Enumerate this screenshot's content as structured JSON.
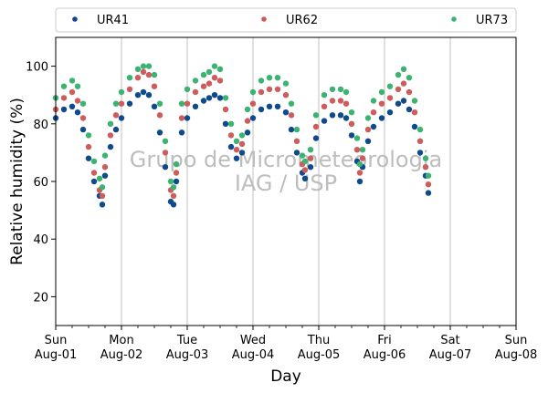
{
  "chart_data": {
    "type": "scatter",
    "xlabel": "Day",
    "ylabel": "Relative humidity (%)",
    "xlim": [
      "2022-08-01 00:00",
      "2022-08-08 00:00"
    ],
    "ylim": [
      10,
      110
    ],
    "yticks": [
      20,
      40,
      60,
      80,
      100
    ],
    "xtick_labels": [
      {
        "day": "Sun",
        "date": "Aug-01"
      },
      {
        "day": "Mon",
        "date": "Aug-02"
      },
      {
        "day": "Tue",
        "date": "Aug-03"
      },
      {
        "day": "Wed",
        "date": "Aug-04"
      },
      {
        "day": "Thu",
        "date": "Aug-05"
      },
      {
        "day": "Fri",
        "date": "Aug-06"
      },
      {
        "day": "Sat",
        "date": "Aug-07"
      },
      {
        "day": "Sun",
        "date": "Aug-08"
      }
    ],
    "grid": "vertical",
    "legend": "top",
    "watermark": [
      "Grupo de Micrometeorologia",
      "IAG / USP"
    ],
    "series": [
      {
        "name": "UR41",
        "color": "#0f4a8a",
        "points": [
          [
            "2022-08-01 00:00",
            82
          ],
          [
            "2022-08-01 03:00",
            85
          ],
          [
            "2022-08-01 06:00",
            86
          ],
          [
            "2022-08-01 08:00",
            84
          ],
          [
            "2022-08-01 10:00",
            78
          ],
          [
            "2022-08-01 12:00",
            68
          ],
          [
            "2022-08-01 14:00",
            60
          ],
          [
            "2022-08-01 16:00",
            55
          ],
          [
            "2022-08-01 17:00",
            52
          ],
          [
            "2022-08-01 18:00",
            62
          ],
          [
            "2022-08-01 20:00",
            72
          ],
          [
            "2022-08-01 22:00",
            78
          ],
          [
            "2022-08-02 00:00",
            82
          ],
          [
            "2022-08-02 03:00",
            87
          ],
          [
            "2022-08-02 06:00",
            90
          ],
          [
            "2022-08-02 08:00",
            91
          ],
          [
            "2022-08-02 10:00",
            90
          ],
          [
            "2022-08-02 12:00",
            86
          ],
          [
            "2022-08-02 14:00",
            77
          ],
          [
            "2022-08-02 16:00",
            65
          ],
          [
            "2022-08-02 18:00",
            53
          ],
          [
            "2022-08-02 19:00",
            52
          ],
          [
            "2022-08-02 20:00",
            60
          ],
          [
            "2022-08-02 22:00",
            77
          ],
          [
            "2022-08-03 00:00",
            82
          ],
          [
            "2022-08-03 03:00",
            86
          ],
          [
            "2022-08-03 06:00",
            88
          ],
          [
            "2022-08-03 08:00",
            89
          ],
          [
            "2022-08-03 10:00",
            90
          ],
          [
            "2022-08-03 12:00",
            89
          ],
          [
            "2022-08-03 14:00",
            80
          ],
          [
            "2022-08-03 16:00",
            72
          ],
          [
            "2022-08-03 18:00",
            68
          ],
          [
            "2022-08-03 20:00",
            70
          ],
          [
            "2022-08-03 22:00",
            77
          ],
          [
            "2022-08-04 00:00",
            82
          ],
          [
            "2022-08-04 03:00",
            85
          ],
          [
            "2022-08-04 06:00",
            86
          ],
          [
            "2022-08-04 09:00",
            86
          ],
          [
            "2022-08-04 12:00",
            84
          ],
          [
            "2022-08-04 14:00",
            78
          ],
          [
            "2022-08-04 16:00",
            70
          ],
          [
            "2022-08-04 18:00",
            63
          ],
          [
            "2022-08-04 19:00",
            61
          ],
          [
            "2022-08-04 21:00",
            65
          ],
          [
            "2022-08-04 23:00",
            75
          ],
          [
            "2022-08-05 02:00",
            81
          ],
          [
            "2022-08-05 05:00",
            83
          ],
          [
            "2022-08-05 08:00",
            83
          ],
          [
            "2022-08-05 10:00",
            82
          ],
          [
            "2022-08-05 12:00",
            76
          ],
          [
            "2022-08-05 14:00",
            67
          ],
          [
            "2022-08-05 15:00",
            60
          ],
          [
            "2022-08-05 16:00",
            65
          ],
          [
            "2022-08-05 18:00",
            74
          ],
          [
            "2022-08-05 20:00",
            79
          ],
          [
            "2022-08-05 23:00",
            82
          ],
          [
            "2022-08-06 02:00",
            84
          ],
          [
            "2022-08-06 05:00",
            87
          ],
          [
            "2022-08-06 07:00",
            88
          ],
          [
            "2022-08-06 09:00",
            85
          ],
          [
            "2022-08-06 11:00",
            79
          ],
          [
            "2022-08-06 13:00",
            70
          ],
          [
            "2022-08-06 15:00",
            62
          ],
          [
            "2022-08-06 16:00",
            56
          ]
        ]
      },
      {
        "name": "UR62",
        "color": "#cd5c5c",
        "points": [
          [
            "2022-08-01 00:00",
            85
          ],
          [
            "2022-08-01 03:00",
            89
          ],
          [
            "2022-08-01 06:00",
            91
          ],
          [
            "2022-08-01 08:00",
            88
          ],
          [
            "2022-08-01 10:00",
            82
          ],
          [
            "2022-08-01 12:00",
            72
          ],
          [
            "2022-08-01 14:00",
            63
          ],
          [
            "2022-08-01 16:00",
            57
          ],
          [
            "2022-08-01 17:00",
            55
          ],
          [
            "2022-08-01 18:00",
            65
          ],
          [
            "2022-08-01 20:00",
            76
          ],
          [
            "2022-08-01 22:00",
            83
          ],
          [
            "2022-08-02 00:00",
            87
          ],
          [
            "2022-08-02 03:00",
            92
          ],
          [
            "2022-08-02 06:00",
            96
          ],
          [
            "2022-08-02 08:00",
            98
          ],
          [
            "2022-08-02 10:00",
            97
          ],
          [
            "2022-08-02 12:00",
            93
          ],
          [
            "2022-08-02 14:00",
            83
          ],
          [
            "2022-08-02 16:00",
            70
          ],
          [
            "2022-08-02 18:00",
            57
          ],
          [
            "2022-08-02 19:00",
            55
          ],
          [
            "2022-08-02 20:00",
            63
          ],
          [
            "2022-08-02 22:00",
            82
          ],
          [
            "2022-08-03 00:00",
            87
          ],
          [
            "2022-08-03 03:00",
            91
          ],
          [
            "2022-08-03 06:00",
            93
          ],
          [
            "2022-08-03 08:00",
            94
          ],
          [
            "2022-08-03 10:00",
            96
          ],
          [
            "2022-08-03 12:00",
            95
          ],
          [
            "2022-08-03 14:00",
            85
          ],
          [
            "2022-08-03 16:00",
            76
          ],
          [
            "2022-08-03 18:00",
            71
          ],
          [
            "2022-08-03 20:00",
            73
          ],
          [
            "2022-08-03 22:00",
            81
          ],
          [
            "2022-08-04 00:00",
            87
          ],
          [
            "2022-08-04 03:00",
            91
          ],
          [
            "2022-08-04 06:00",
            92
          ],
          [
            "2022-08-04 09:00",
            92
          ],
          [
            "2022-08-04 12:00",
            90
          ],
          [
            "2022-08-04 14:00",
            83
          ],
          [
            "2022-08-04 16:00",
            74
          ],
          [
            "2022-08-04 18:00",
            66
          ],
          [
            "2022-08-04 19:00",
            64
          ],
          [
            "2022-08-04 21:00",
            68
          ],
          [
            "2022-08-04 23:00",
            79
          ],
          [
            "2022-08-05 02:00",
            86
          ],
          [
            "2022-08-05 05:00",
            88
          ],
          [
            "2022-08-05 08:00",
            88
          ],
          [
            "2022-08-05 10:00",
            87
          ],
          [
            "2022-08-05 12:00",
            80
          ],
          [
            "2022-08-05 14:00",
            71
          ],
          [
            "2022-08-05 15:00",
            63
          ],
          [
            "2022-08-05 16:00",
            68
          ],
          [
            "2022-08-05 18:00",
            78
          ],
          [
            "2022-08-05 20:00",
            84
          ],
          [
            "2022-08-05 23:00",
            87
          ],
          [
            "2022-08-06 02:00",
            89
          ],
          [
            "2022-08-06 05:00",
            92
          ],
          [
            "2022-08-06 07:00",
            94
          ],
          [
            "2022-08-06 09:00",
            91
          ],
          [
            "2022-08-06 11:00",
            84
          ],
          [
            "2022-08-06 13:00",
            74
          ],
          [
            "2022-08-06 15:00",
            65
          ],
          [
            "2022-08-06 16:00",
            59
          ]
        ]
      },
      {
        "name": "UR73",
        "color": "#3cb371",
        "points": [
          [
            "2022-08-01 00:00",
            89
          ],
          [
            "2022-08-01 03:00",
            93
          ],
          [
            "2022-08-01 06:00",
            95
          ],
          [
            "2022-08-01 08:00",
            93
          ],
          [
            "2022-08-01 10:00",
            87
          ],
          [
            "2022-08-01 12:00",
            76
          ],
          [
            "2022-08-01 14:00",
            67
          ],
          [
            "2022-08-01 16:00",
            61
          ],
          [
            "2022-08-01 17:00",
            58
          ],
          [
            "2022-08-01 18:00",
            69
          ],
          [
            "2022-08-01 20:00",
            80
          ],
          [
            "2022-08-01 22:00",
            87
          ],
          [
            "2022-08-02 00:00",
            91
          ],
          [
            "2022-08-02 03:00",
            96
          ],
          [
            "2022-08-02 06:00",
            99
          ],
          [
            "2022-08-02 08:00",
            100
          ],
          [
            "2022-08-02 10:00",
            100
          ],
          [
            "2022-08-02 12:00",
            97
          ],
          [
            "2022-08-02 14:00",
            87
          ],
          [
            "2022-08-02 16:00",
            74
          ],
          [
            "2022-08-02 18:00",
            60
          ],
          [
            "2022-08-02 19:00",
            58
          ],
          [
            "2022-08-02 20:00",
            66
          ],
          [
            "2022-08-02 22:00",
            87
          ],
          [
            "2022-08-03 00:00",
            92
          ],
          [
            "2022-08-03 03:00",
            95
          ],
          [
            "2022-08-03 06:00",
            97
          ],
          [
            "2022-08-03 08:00",
            98
          ],
          [
            "2022-08-03 10:00",
            100
          ],
          [
            "2022-08-03 12:00",
            99
          ],
          [
            "2022-08-03 14:00",
            89
          ],
          [
            "2022-08-03 16:00",
            80
          ],
          [
            "2022-08-03 18:00",
            74
          ],
          [
            "2022-08-03 20:00",
            76
          ],
          [
            "2022-08-03 22:00",
            85
          ],
          [
            "2022-08-04 00:00",
            91
          ],
          [
            "2022-08-04 03:00",
            95
          ],
          [
            "2022-08-04 06:00",
            96
          ],
          [
            "2022-08-04 09:00",
            96
          ],
          [
            "2022-08-04 12:00",
            94
          ],
          [
            "2022-08-04 14:00",
            87
          ],
          [
            "2022-08-04 16:00",
            78
          ],
          [
            "2022-08-04 18:00",
            69
          ],
          [
            "2022-08-04 19:00",
            67
          ],
          [
            "2022-08-04 21:00",
            71
          ],
          [
            "2022-08-04 23:00",
            83
          ],
          [
            "2022-08-05 02:00",
            90
          ],
          [
            "2022-08-05 05:00",
            92
          ],
          [
            "2022-08-05 08:00",
            92
          ],
          [
            "2022-08-05 10:00",
            91
          ],
          [
            "2022-08-05 12:00",
            84
          ],
          [
            "2022-08-05 14:00",
            75
          ],
          [
            "2022-08-05 15:00",
            66
          ],
          [
            "2022-08-05 16:00",
            71
          ],
          [
            "2022-08-05 18:00",
            82
          ],
          [
            "2022-08-05 20:00",
            88
          ],
          [
            "2022-08-05 23:00",
            91
          ],
          [
            "2022-08-06 02:00",
            93
          ],
          [
            "2022-08-06 05:00",
            97
          ],
          [
            "2022-08-06 07:00",
            99
          ],
          [
            "2022-08-06 09:00",
            96
          ],
          [
            "2022-08-06 11:00",
            88
          ],
          [
            "2022-08-06 13:00",
            78
          ],
          [
            "2022-08-06 15:00",
            68
          ],
          [
            "2022-08-06 16:00",
            62
          ]
        ]
      }
    ]
  }
}
